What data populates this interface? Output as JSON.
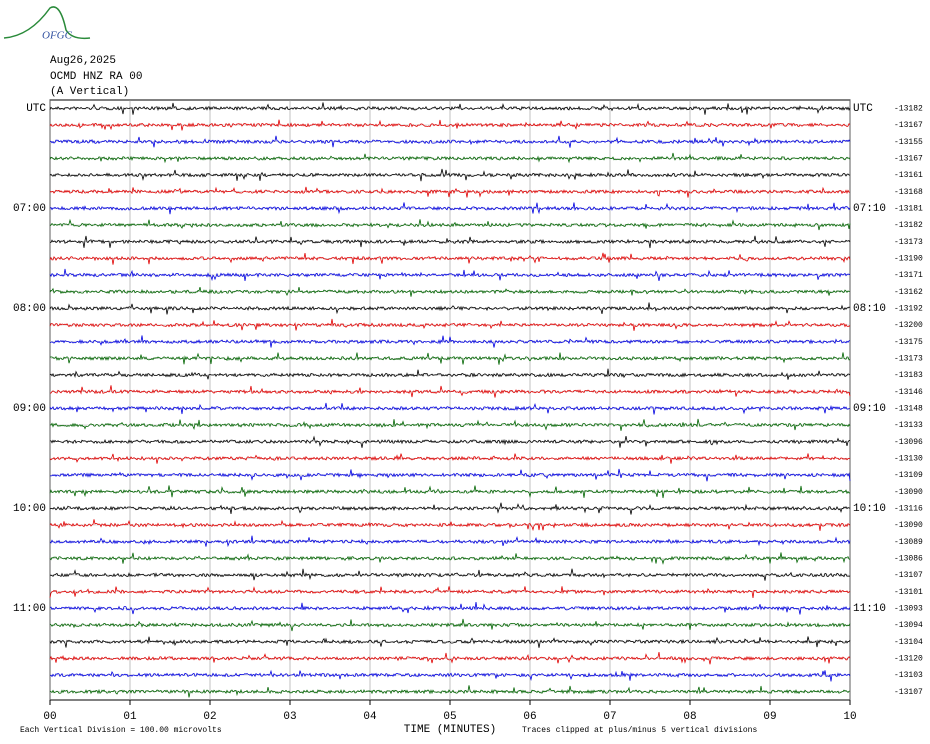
{
  "logo": "OFGC",
  "chart_data": {
    "type": "helicorder",
    "date": "Aug26,2025",
    "station": "OCMD HNZ RA 00",
    "component": "(A Vertical)",
    "left_labels": [
      "UTC",
      "07:00",
      "08:00",
      "09:00",
      "10:00",
      "11:00"
    ],
    "right_labels": [
      "UTC",
      "07:10",
      "08:10",
      "09:10",
      "10:10",
      "11:10"
    ],
    "trace_colors": [
      "#000000",
      "#e00000",
      "#0000e0",
      "#006400"
    ],
    "offsets": [
      -13182,
      -13167,
      -13155,
      -13167,
      -13161,
      -13168,
      -13181,
      -13182,
      -13173,
      -13190,
      -13171,
      -13162,
      -13192,
      -13200,
      -13175,
      -13173,
      -13183,
      -13146,
      -13148,
      -13133,
      -13096,
      -13130,
      -13109,
      -13090,
      -13116,
      -13090,
      -13089,
      -13086,
      -13107,
      -13101,
      -13093,
      -13094,
      -13104,
      -13120,
      -13103,
      -13107
    ],
    "xlim": [
      0,
      10
    ],
    "xticks": [
      {
        "value": 0,
        "label": "00"
      },
      {
        "value": 1,
        "label": "01"
      },
      {
        "value": 2,
        "label": "02"
      },
      {
        "value": 3,
        "label": "03"
      },
      {
        "value": 4,
        "label": "04"
      },
      {
        "value": 5,
        "label": "05"
      },
      {
        "value": 6,
        "label": "06"
      },
      {
        "value": 7,
        "label": "07"
      },
      {
        "value": 8,
        "label": "08"
      },
      {
        "value": 9,
        "label": "09"
      },
      {
        "value": 10,
        "label": "10"
      }
    ],
    "x_label": "TIME (MINUTES)",
    "scale_note": "Each Vertical Division =  100.00 microvolts",
    "clip_note": "Traces clipped at plus/minus 5 vertical divisions"
  }
}
